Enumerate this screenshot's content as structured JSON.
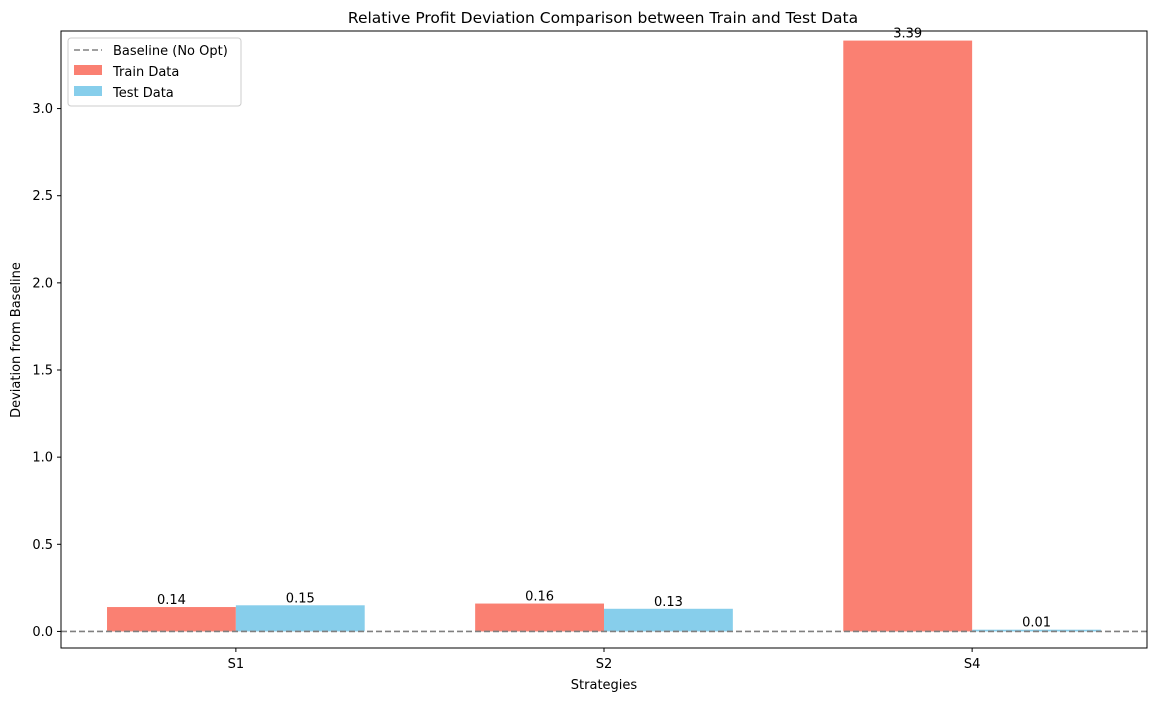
{
  "chart_data": {
    "type": "bar",
    "title": "Relative Profit Deviation Comparison between Train and Test Data",
    "xlabel": "Strategies",
    "ylabel": "Deviation from Baseline",
    "categories": [
      "S1",
      "S2",
      "S4"
    ],
    "series": [
      {
        "name": "Train Data",
        "values": [
          0.14,
          0.16,
          3.39
        ],
        "labels": [
          "0.14",
          "0.16",
          "3.39"
        ],
        "color": "#fa8072"
      },
      {
        "name": "Test Data",
        "values": [
          0.15,
          0.13,
          0.01
        ],
        "labels": [
          "0.15",
          "0.13",
          "0.01"
        ],
        "color": "#87ceeb"
      }
    ],
    "baseline": {
      "name": "Baseline (No Opt)",
      "value": 0,
      "color": "#808080",
      "style": "dashed"
    },
    "yticks": [
      0.0,
      0.5,
      1.0,
      1.5,
      2.0,
      2.5,
      3.0
    ],
    "ytick_labels": [
      "0.0",
      "0.5",
      "1.0",
      "1.5",
      "2.0",
      "2.5",
      "3.0"
    ],
    "ylim": [
      -0.095,
      3.445
    ],
    "legend_position": "upper-left",
    "grid": false
  }
}
